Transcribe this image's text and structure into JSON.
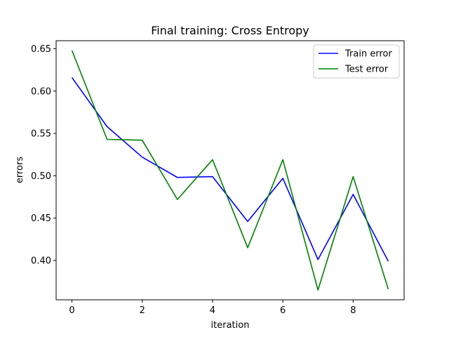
{
  "chart_data": {
    "type": "line",
    "title": "Final training: Cross Entropy",
    "xlabel": "iteration",
    "ylabel": "errors",
    "x": [
      0,
      1,
      2,
      3,
      4,
      5,
      6,
      7,
      8,
      9
    ],
    "xlim": [
      -0.45,
      9.45
    ],
    "ylim": [
      0.3535,
      0.6595
    ],
    "xticks": [
      0,
      2,
      4,
      6,
      8
    ],
    "xtick_labels": [
      "0",
      "2",
      "4",
      "6",
      "8"
    ],
    "yticks": [
      0.4,
      0.45,
      0.5,
      0.55,
      0.6,
      0.65
    ],
    "ytick_labels": [
      "0.40",
      "0.45",
      "0.50",
      "0.55",
      "0.60",
      "0.65"
    ],
    "grid": false,
    "legend_position": "top-right",
    "series": [
      {
        "name": "Train error",
        "color": "#0000ff",
        "values": [
          0.616,
          0.558,
          0.522,
          0.498,
          0.499,
          0.446,
          0.497,
          0.401,
          0.478,
          0.399
        ]
      },
      {
        "name": "Test error",
        "color": "#008000",
        "values": [
          0.648,
          0.543,
          0.542,
          0.472,
          0.519,
          0.415,
          0.519,
          0.365,
          0.499,
          0.366
        ]
      }
    ]
  }
}
